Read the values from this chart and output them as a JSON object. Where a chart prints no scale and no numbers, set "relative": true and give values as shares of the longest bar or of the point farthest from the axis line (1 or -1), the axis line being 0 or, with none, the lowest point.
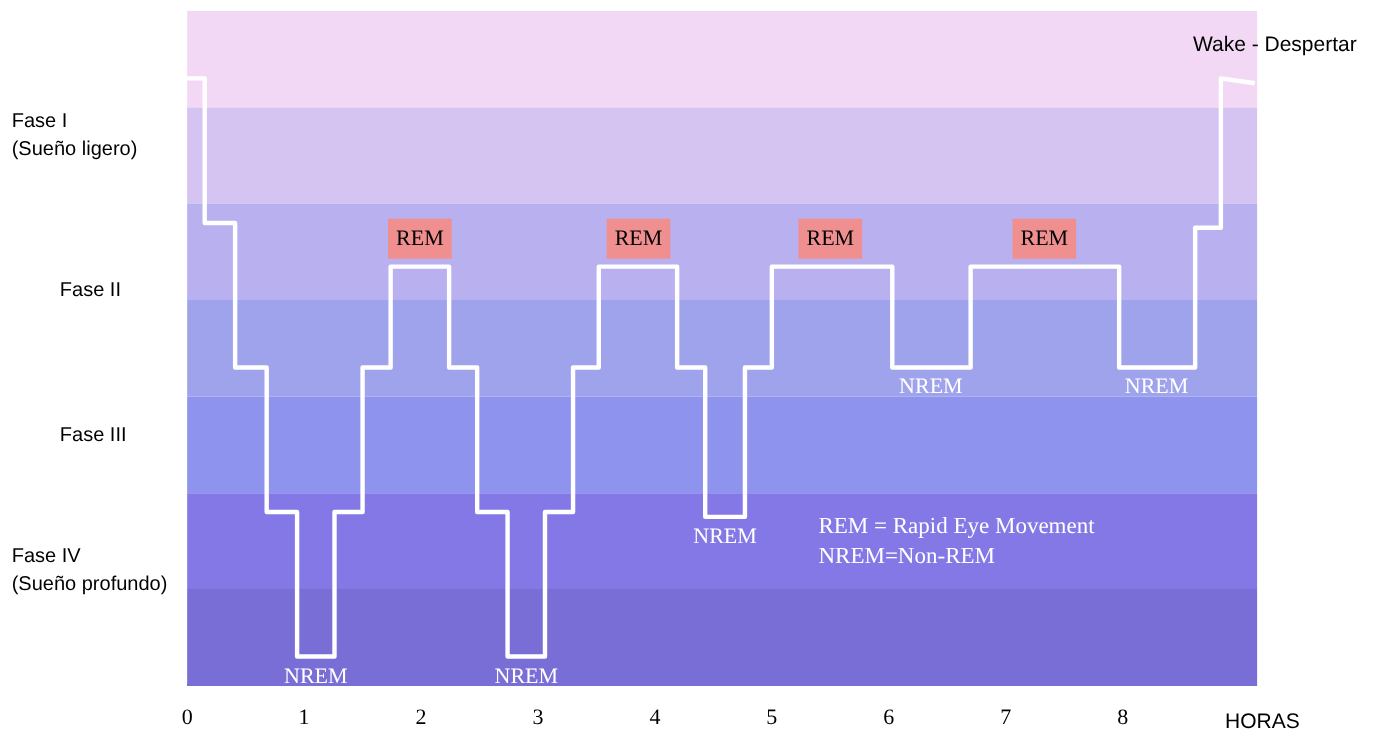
{
  "chart_data": {
    "type": "line",
    "relative": true,
    "xlabel": "HORAS",
    "xlim": [
      0,
      9.15
    ],
    "xticks": [
      0,
      1,
      2,
      3,
      4,
      5,
      6,
      7,
      8
    ],
    "grid": false,
    "series": [
      {
        "color": "#ffffff",
        "line_style": "solid",
        "x": [
          0,
          0.15,
          0.15,
          0.41,
          0.41,
          0.68,
          0.68,
          0.94,
          0.94,
          1.26,
          1.26,
          1.5,
          1.5,
          1.74,
          1.74,
          2.24,
          2.24,
          2.48,
          2.48,
          2.74,
          2.74,
          3.06,
          3.06,
          3.3,
          3.3,
          3.52,
          3.52,
          4.19,
          4.19,
          4.43,
          4.43,
          4.77,
          4.77,
          5.0,
          5.0,
          6.03,
          6.03,
          6.7,
          6.7,
          7.97,
          7.97,
          8.62,
          8.62,
          8.84,
          8.84,
          9.13
        ],
        "values": [
          1,
          1,
          0.762,
          0.762,
          0.524,
          0.524,
          0.286,
          0.286,
          0.048,
          0.048,
          0.286,
          0.286,
          0.524,
          0.524,
          0.69,
          0.69,
          0.524,
          0.524,
          0.286,
          0.286,
          0.048,
          0.048,
          0.286,
          0.286,
          0.524,
          0.524,
          0.69,
          0.69,
          0.524,
          0.524,
          0.278,
          0.278,
          0.524,
          0.524,
          0.69,
          0.69,
          0.524,
          0.524,
          0.69,
          0.69,
          0.524,
          0.524,
          0.754,
          0.754,
          1,
          0.992
        ]
      }
    ],
    "bands": [
      {
        "axis": "y",
        "from": 0.952,
        "to": 1.111,
        "label": null,
        "color": "#f2d8f4"
      },
      {
        "axis": "y",
        "from": 0.794,
        "to": 0.952,
        "label": null,
        "color": "#d5c3f2"
      },
      {
        "axis": "y",
        "from": 0.635,
        "to": 0.794,
        "label": null,
        "color": "#b9b0f0"
      },
      {
        "axis": "y",
        "from": 0.476,
        "to": 0.635,
        "label": null,
        "color": "#9fa3ec"
      },
      {
        "axis": "y",
        "from": 0.317,
        "to": 0.476,
        "label": null,
        "color": "#8e93ee"
      },
      {
        "axis": "y",
        "from": 0.159,
        "to": 0.317,
        "label": null,
        "color": "#8478e6"
      },
      {
        "axis": "y",
        "from": 0,
        "to": 0.159,
        "label": null,
        "color": "#786ed6"
      }
    ],
    "annotations": [
      "Fase I\n(Sueño ligero)",
      "Fase II",
      "Fase III",
      "Fase IV\n(Sueño profundo)",
      "Wake - Despertar",
      "REM = Rapid Eye Movement",
      "NREM=Non-REM",
      {
        "text": "REM",
        "x": 1.99,
        "y": 0.69
      },
      {
        "text": "REM",
        "x": 3.86,
        "y": 0.69
      },
      {
        "text": "REM",
        "x": 5.5,
        "y": 0.69
      },
      {
        "text": "REM",
        "x": 7.33,
        "y": 0.69
      },
      {
        "text": "NREM",
        "x": 1.1,
        "y": 0.048
      },
      {
        "text": "NREM",
        "x": 2.9,
        "y": 0.048
      },
      {
        "text": "NREM",
        "x": 4.6,
        "y": 0.278
      },
      {
        "text": "NREM",
        "x": 6.36,
        "y": 0.524
      },
      {
        "text": "NREM",
        "x": 8.29,
        "y": 0.524
      }
    ]
  }
}
